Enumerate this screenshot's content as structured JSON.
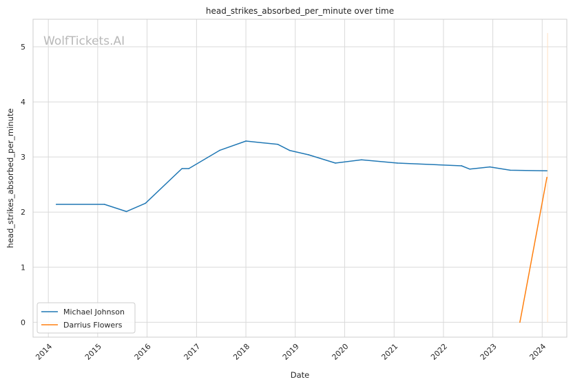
{
  "chart_data": {
    "type": "line",
    "title": "head_strikes_absorbed_per_minute over time",
    "xlabel": "Date",
    "ylabel": "head_strikes_absorbed_per_minute",
    "watermark": "WolfTickets.AI",
    "xlim": [
      "2013-09-10",
      "2024-07-01"
    ],
    "ylim": [
      -0.27,
      5.5
    ],
    "x_ticks": [
      "2014",
      "2015",
      "2016",
      "2017",
      "2018",
      "2019",
      "2020",
      "2021",
      "2022",
      "2023",
      "2024"
    ],
    "y_ticks": [
      "0",
      "1",
      "2",
      "3",
      "4",
      "5"
    ],
    "grid": true,
    "legend_position": "lower-left",
    "series": [
      {
        "name": "Michael Johnson",
        "color": "#1f77b4",
        "points": [
          {
            "x": "2014-03-01",
            "y": 2.14
          },
          {
            "x": "2015-02-20",
            "y": 2.14
          },
          {
            "x": "2015-08-01",
            "y": 2.01
          },
          {
            "x": "2015-12-20",
            "y": 2.16
          },
          {
            "x": "2016-09-15",
            "y": 2.79
          },
          {
            "x": "2016-11-05",
            "y": 2.79
          },
          {
            "x": "2017-06-20",
            "y": 3.12
          },
          {
            "x": "2018-01-01",
            "y": 3.29
          },
          {
            "x": "2018-08-25",
            "y": 3.23
          },
          {
            "x": "2018-11-20",
            "y": 3.12
          },
          {
            "x": "2019-04-10",
            "y": 3.04
          },
          {
            "x": "2019-10-25",
            "y": 2.89
          },
          {
            "x": "2020-05-05",
            "y": 2.95
          },
          {
            "x": "2021-01-25",
            "y": 2.89
          },
          {
            "x": "2022-05-15",
            "y": 2.84
          },
          {
            "x": "2022-07-15",
            "y": 2.78
          },
          {
            "x": "2022-12-10",
            "y": 2.82
          },
          {
            "x": "2023-05-10",
            "y": 2.76
          },
          {
            "x": "2024-02-05",
            "y": 2.75
          }
        ]
      },
      {
        "name": "Darrius Flowers",
        "color": "#ff7f0e",
        "points": [
          {
            "x": "2023-07-20",
            "y": 0.0
          },
          {
            "x": "2024-02-05",
            "y": 2.63
          }
        ]
      }
    ],
    "annotation_band": {
      "x": "2024-02-10",
      "y": [
        0.0,
        5.25
      ],
      "color": "#ffe0c2"
    }
  }
}
